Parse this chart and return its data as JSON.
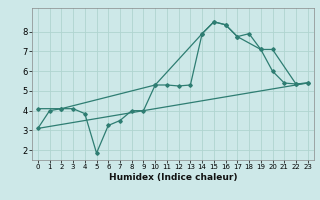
{
  "title": "",
  "xlabel": "Humidex (Indice chaleur)",
  "xlim": [
    -0.5,
    23.5
  ],
  "ylim": [
    1.5,
    9.2
  ],
  "yticks": [
    2,
    3,
    4,
    5,
    6,
    7,
    8
  ],
  "xticks": [
    0,
    1,
    2,
    3,
    4,
    5,
    6,
    7,
    8,
    9,
    10,
    11,
    12,
    13,
    14,
    15,
    16,
    17,
    18,
    19,
    20,
    21,
    22,
    23
  ],
  "bg_color": "#cde8e8",
  "grid_color": "#b0d4d0",
  "line_color": "#2e7d72",
  "line1_x": [
    0,
    1,
    2,
    3,
    4,
    5,
    6,
    7,
    8,
    9,
    10,
    11,
    12,
    13,
    14,
    15,
    16,
    17,
    18,
    19,
    20,
    21,
    22,
    23
  ],
  "line1_y": [
    3.1,
    4.0,
    4.1,
    4.1,
    3.85,
    1.85,
    3.25,
    3.5,
    4.0,
    4.0,
    5.3,
    5.3,
    5.25,
    5.3,
    7.9,
    8.5,
    8.35,
    7.75,
    7.9,
    7.1,
    6.0,
    5.4,
    5.35,
    5.4
  ],
  "line2_x": [
    0,
    23
  ],
  "line2_y": [
    3.1,
    5.4
  ],
  "line3_x": [
    0,
    2,
    10,
    14,
    15,
    16,
    17,
    19,
    20,
    22,
    23
  ],
  "line3_y": [
    4.1,
    4.1,
    5.3,
    7.9,
    8.5,
    8.35,
    7.75,
    7.1,
    7.1,
    5.35,
    5.4
  ],
  "xlabel_fontsize": 6.5,
  "tick_fontsize_x": 5.0,
  "tick_fontsize_y": 6.0
}
